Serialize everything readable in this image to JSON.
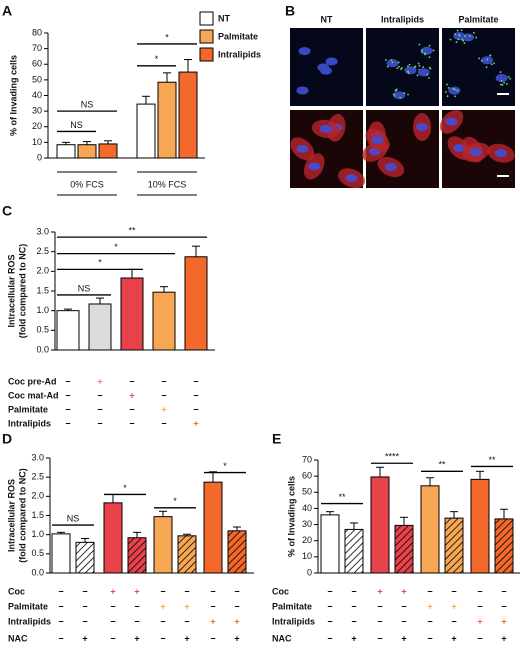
{
  "chart_data": [
    {
      "type": "bar",
      "panel": "A",
      "ylabel": [
        "% of Invading cells"
      ],
      "categories": [
        "0% FCS",
        "10% FCS"
      ],
      "series": [
        {
          "name": "NT",
          "color": "#ffffff",
          "values": [
            8.5,
            34.5
          ],
          "errors": [
            1.5,
            5
          ]
        },
        {
          "name": "Palmitate",
          "color": "#f7a654",
          "values": [
            8.5,
            48.5
          ],
          "errors": [
            2,
            6
          ]
        },
        {
          "name": "Intralipids",
          "color": "#f2692b",
          "values": [
            9,
            55
          ],
          "errors": [
            2,
            8
          ]
        }
      ],
      "ylim": [
        0,
        80
      ],
      "yticks": [
        0,
        10,
        20,
        30,
        40,
        50,
        60,
        70,
        80
      ],
      "annotations": [
        "NS",
        "NS",
        "*",
        "*"
      ]
    },
    {
      "type": "bar",
      "panel": "C",
      "ylabel": [
        "Intracellular ROS",
        "(fold compared to NC)"
      ],
      "values": [
        1.0,
        1.17,
        1.83,
        1.47,
        2.37
      ],
      "errors": [
        0.04,
        0.15,
        0.22,
        0.14,
        0.27
      ],
      "colors": [
        "#ffffff",
        "#dcdcdc",
        "#e8434a",
        "#f7a654",
        "#f2692b"
      ],
      "hatch": [
        false,
        false,
        false,
        false,
        false
      ],
      "ylim": [
        0,
        3
      ],
      "yticks": [
        {
          "value": 0,
          "label": "0.0"
        },
        {
          "value": 0.5,
          "label": "0.5"
        },
        {
          "value": 1,
          "label": "1.0"
        },
        {
          "value": 1.5,
          "label": "1.5"
        },
        {
          "value": 2,
          "label": "2.0"
        },
        {
          "value": 2.5,
          "label": "2.5"
        },
        {
          "value": 3,
          "label": "3.0"
        }
      ],
      "annotations": [
        "NS",
        "*",
        "*",
        "**"
      ],
      "rows": [
        {
          "label": "Coc pre-Ad",
          "color": "#e88080",
          "signs": [
            "−",
            "+",
            "−",
            "−",
            "−"
          ]
        },
        {
          "label": "Coc mat-Ad",
          "color": "#e8434a",
          "signs": [
            "−",
            "−",
            "+",
            "−",
            "−"
          ]
        },
        {
          "label": "Palmitate",
          "color": "#f7a654",
          "signs": [
            "−",
            "−",
            "−",
            "+",
            "−"
          ]
        },
        {
          "label": "Intralipids",
          "color": "#f2692b",
          "signs": [
            "−",
            "−",
            "−",
            "−",
            "+"
          ]
        }
      ]
    },
    {
      "type": "bar",
      "panel": "D",
      "ylabel": [
        "Intracellular ROS",
        "(fold compared to NC)"
      ],
      "values": [
        1.02,
        0.8,
        1.83,
        0.92,
        1.47,
        0.97,
        2.37,
        1.1
      ],
      "errors": [
        0.04,
        0.1,
        0.22,
        0.14,
        0.14,
        0.04,
        0.27,
        0.1
      ],
      "colors": [
        "#ffffff",
        "#ffffff",
        "#e8434a",
        "#e8434a",
        "#f7a654",
        "#f7a654",
        "#f2692b",
        "#f2692b"
      ],
      "hatch": [
        false,
        true,
        false,
        true,
        false,
        true,
        false,
        true
      ],
      "ylim": [
        0,
        3
      ],
      "yticks": [
        {
          "value": 0,
          "label": "0.0"
        },
        {
          "value": 0.5,
          "label": "0.5"
        },
        {
          "value": 1,
          "label": "1.0"
        },
        {
          "value": 1.5,
          "label": "1.5"
        },
        {
          "value": 2,
          "label": "2.0"
        },
        {
          "value": 2.5,
          "label": "2.5"
        },
        {
          "value": 3,
          "label": "3.0"
        }
      ],
      "annotations": [
        "NS",
        "*",
        "*",
        "*"
      ],
      "rows": [
        {
          "label": "Coc",
          "color": "#e8434a",
          "signs": [
            "−",
            "−",
            "+",
            "+",
            "−",
            "−",
            "−",
            "−"
          ]
        },
        {
          "label": "Palmitate",
          "color": "#f7a654",
          "signs": [
            "−",
            "−",
            "−",
            "−",
            "+",
            "+",
            "−",
            "−"
          ]
        },
        {
          "label": "Intralipids",
          "color": "#f2692b",
          "signs": [
            "−",
            "−",
            "−",
            "−",
            "−",
            "−",
            "+",
            "+"
          ]
        },
        {
          "label": "NAC",
          "color": "#000000",
          "signs": [
            "−",
            "+",
            "−",
            "+",
            "−",
            "+",
            "−",
            "+"
          ]
        }
      ]
    },
    {
      "type": "bar",
      "panel": "E",
      "ylabel": [
        "% of Invading cells"
      ],
      "values": [
        36,
        27,
        59.5,
        29.5,
        54,
        34,
        58,
        33.5
      ],
      "errors": [
        2,
        4,
        6,
        5,
        5,
        4,
        5,
        6
      ],
      "colors": [
        "#ffffff",
        "#ffffff",
        "#e8434a",
        "#e8434a",
        "#f7a654",
        "#f7a654",
        "#f2692b",
        "#f2692b"
      ],
      "hatch": [
        false,
        true,
        false,
        true,
        false,
        true,
        false,
        true
      ],
      "ylim": [
        0,
        70
      ],
      "yticks": [
        0,
        10,
        20,
        30,
        40,
        50,
        60,
        70
      ],
      "annotations": [
        "**",
        "****",
        "**",
        "**"
      ],
      "rows": [
        {
          "label": "Coc",
          "color": "#e8434a",
          "signs": [
            "−",
            "−",
            "+",
            "+",
            "−",
            "−",
            "−",
            "−"
          ]
        },
        {
          "label": "Palmitate",
          "color": "#f7a654",
          "signs": [
            "−",
            "−",
            "−",
            "−",
            "+",
            "+",
            "−",
            "−"
          ]
        },
        {
          "label": "Intralipids",
          "color": "#f2692b",
          "signs": [
            "−",
            "−",
            "−",
            "−",
            "−",
            "−",
            "+",
            "+"
          ]
        },
        {
          "label": "NAC",
          "color": "#000000",
          "signs": [
            "−",
            "+",
            "−",
            "+",
            "−",
            "+",
            "−",
            "+"
          ]
        }
      ]
    }
  ],
  "panel_b": {
    "panel": "B",
    "columns": [
      "NT",
      "Intralipids",
      "Palmitate"
    ]
  }
}
